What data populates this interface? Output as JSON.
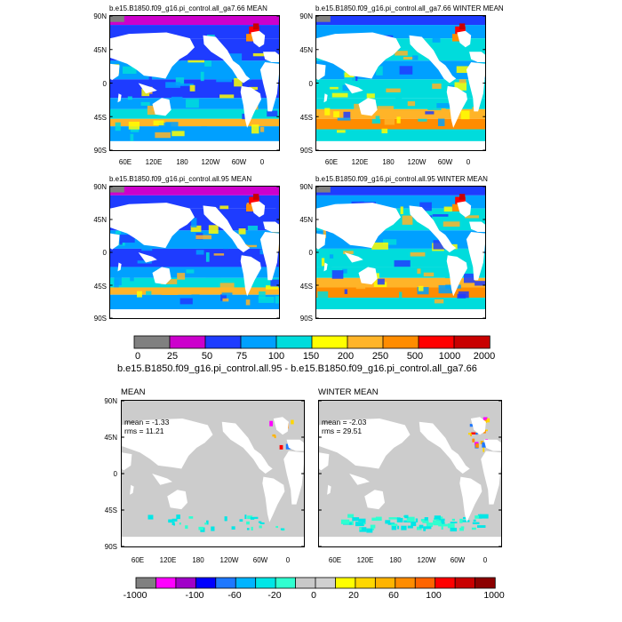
{
  "panels": [
    {
      "id": "p1",
      "title": "b.e15.B1850.f09_g16.pi_control.all_ga7.66 MEAN",
      "kind": "abs",
      "variant": 0
    },
    {
      "id": "p2",
      "title": "b.e15.B1850.f09_g16.pi_control.all_ga7.66 WINTER MEAN",
      "kind": "abs",
      "variant": 1
    },
    {
      "id": "p3",
      "title": "b.e15.B1850.f09_g16.pi_control.all.95 MEAN",
      "kind": "abs",
      "variant": 2
    },
    {
      "id": "p4",
      "title": "b.e15.B1850.f09_g16.pi_control.all.95 WINTER MEAN",
      "kind": "abs",
      "variant": 3
    }
  ],
  "diff_panels": [
    {
      "id": "d1",
      "title": "MEAN",
      "mean_text": "mean = -1.33",
      "rms_text": "rms = 11.21",
      "variant": 0
    },
    {
      "id": "d2",
      "title": "WINTER MEAN",
      "mean_text": "mean = -2.03",
      "rms_text": "rms = 29.51",
      "variant": 1
    }
  ],
  "lat_labels": [
    "90N",
    "45N",
    "0",
    "45S",
    "90S"
  ],
  "lon_labels": [
    "60E",
    "120E",
    "180",
    "120W",
    "60W",
    "0"
  ],
  "colorbar1": {
    "colors": [
      "#808080",
      "#cc00cc",
      "#1e3cff",
      "#00a0ff",
      "#00dcdc",
      "#ffff00",
      "#ffb428",
      "#ff8c00",
      "#ff0000",
      "#c80000"
    ],
    "labels": [
      "0",
      "25",
      "50",
      "75",
      "100",
      "150",
      "200",
      "250",
      "500",
      "1000",
      "2000"
    ]
  },
  "diff_title": "b.e15.B1850.f09_g16.pi_control.all.95 - b.e15.B1850.f09_g16.pi_control.all_ga7.66",
  "colorbar2": {
    "colors": [
      "#808080",
      "#ff00ff",
      "#a000c8",
      "#0000ff",
      "#1e78ff",
      "#00b4ff",
      "#00e6e6",
      "#30ffd0",
      "#c8c8c8",
      "#d0d0d0",
      "#ffff00",
      "#ffd700",
      "#ffb400",
      "#ff8c00",
      "#ff6400",
      "#ff0000",
      "#c80000",
      "#8c0000"
    ],
    "labels": [
      "-1000",
      "-100",
      "-60",
      "-20",
      "0",
      "20",
      "60",
      "100",
      "1000"
    ]
  },
  "colors": {
    "land": "#ffffff",
    "diff_ocean": "#cccccc"
  }
}
